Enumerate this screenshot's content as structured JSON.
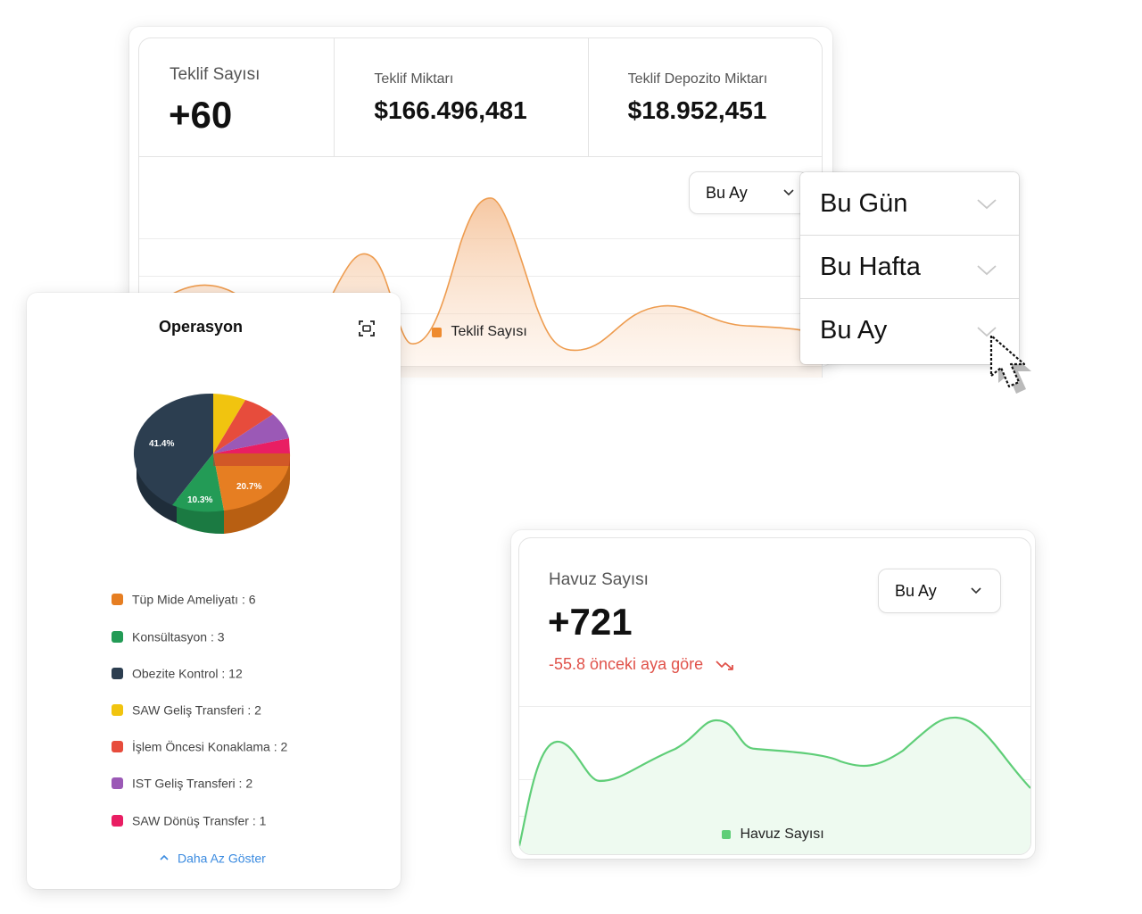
{
  "teklif": {
    "kpis": [
      {
        "label": "Teklif Sayısı",
        "value": "+60"
      },
      {
        "label": "Teklif Miktarı",
        "value": "$166.496,481"
      },
      {
        "label": "Teklif Depozito Miktarı",
        "value": "$18.952,451"
      }
    ],
    "period_select": "Bu Ay",
    "legend": "Teklif Sayısı",
    "series_color": "#f0a35e"
  },
  "dropdown": {
    "options": [
      "Bu Gün",
      "Bu Hafta",
      "Bu Ay"
    ]
  },
  "operasyon": {
    "title": "Operasyon",
    "pie_labels": {
      "a": "41.4%",
      "b": "20.7%",
      "c": "10.3%"
    },
    "legend": [
      {
        "text": "Tüp Mide Ameliyatı : 6",
        "color": "#e67e22"
      },
      {
        "text": "Konsültasyon : 3",
        "color": "#239b56"
      },
      {
        "text": "Obezite Kontrol : 12",
        "color": "#2c3e50"
      },
      {
        "text": "SAW Geliş Transferi : 2",
        "color": "#f1c40f"
      },
      {
        "text": "İşlem Öncesi Konaklama : 2",
        "color": "#e74c3c"
      },
      {
        "text": "IST Geliş Transferi : 2",
        "color": "#9b59b6"
      },
      {
        "text": "SAW Dönüş Transfer : 1",
        "color": "#e91e63"
      }
    ],
    "show_less": "Daha Az Göster"
  },
  "havuz": {
    "label": "Havuz Sayısı",
    "value": "+721",
    "change": "-55.8 önceki aya göre",
    "period_select": "Bu Ay",
    "legend": "Havuz Sayısı",
    "series_color": "#5fce78",
    "negative_color": "#e0524a"
  },
  "chart_data": [
    {
      "type": "pie",
      "title": "Operasyon",
      "categories": [
        "Tüp Mide Ameliyatı",
        "Konsültasyon",
        "Obezite Kontrol",
        "SAW Geliş Transferi",
        "İşlem Öncesi Konaklama",
        "IST Geliş Transferi",
        "SAW Dönüş Transfer"
      ],
      "values": [
        6,
        3,
        12,
        2,
        2,
        2,
        1
      ]
    }
  ]
}
